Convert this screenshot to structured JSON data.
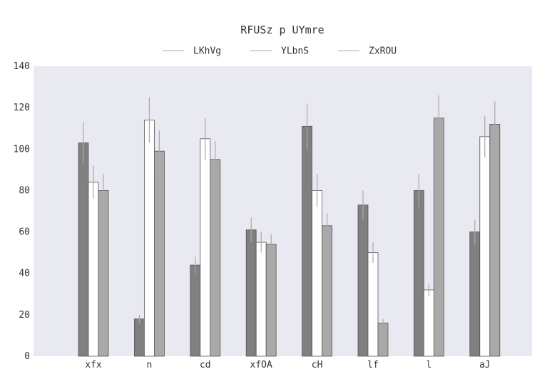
{
  "chart_data": {
    "type": "bar",
    "title": "RFUSz  p UYmre",
    "xlabel": "",
    "ylabel": "",
    "ylim": [
      0,
      140
    ],
    "yticks": [
      0,
      20,
      40,
      60,
      80,
      100,
      120,
      140
    ],
    "grid": false,
    "legend_position": "top-center",
    "categories": [
      "xfx",
      "n",
      "cd",
      "xfOA",
      "cH",
      "lf",
      "l",
      "aJ"
    ],
    "series": [
      {
        "name": "LKhVg",
        "color": "#808080",
        "values": [
          103,
          18,
          44,
          61,
          111,
          73,
          80,
          60
        ],
        "errors": [
          10,
          2,
          4,
          6,
          11,
          7,
          8,
          6
        ]
      },
      {
        "name": "YLbnS",
        "color": "#ffffff",
        "values": [
          84,
          114,
          105,
          55,
          80,
          50,
          32,
          106
        ],
        "errors": [
          8,
          11,
          10,
          5,
          8,
          5,
          3,
          10
        ]
      },
      {
        "name": "ZxROU",
        "color": "#a9a9a9",
        "values": [
          80,
          99,
          95,
          54,
          63,
          16,
          115,
          112
        ],
        "errors": [
          8,
          10,
          9,
          5,
          6,
          2,
          11,
          11
        ]
      }
    ],
    "colors": {
      "plot_background": "#e9e9f1",
      "bar_edge": "#555555",
      "error_bar": "#aaaaaa",
      "legend_line": "#c8c8c8"
    }
  }
}
